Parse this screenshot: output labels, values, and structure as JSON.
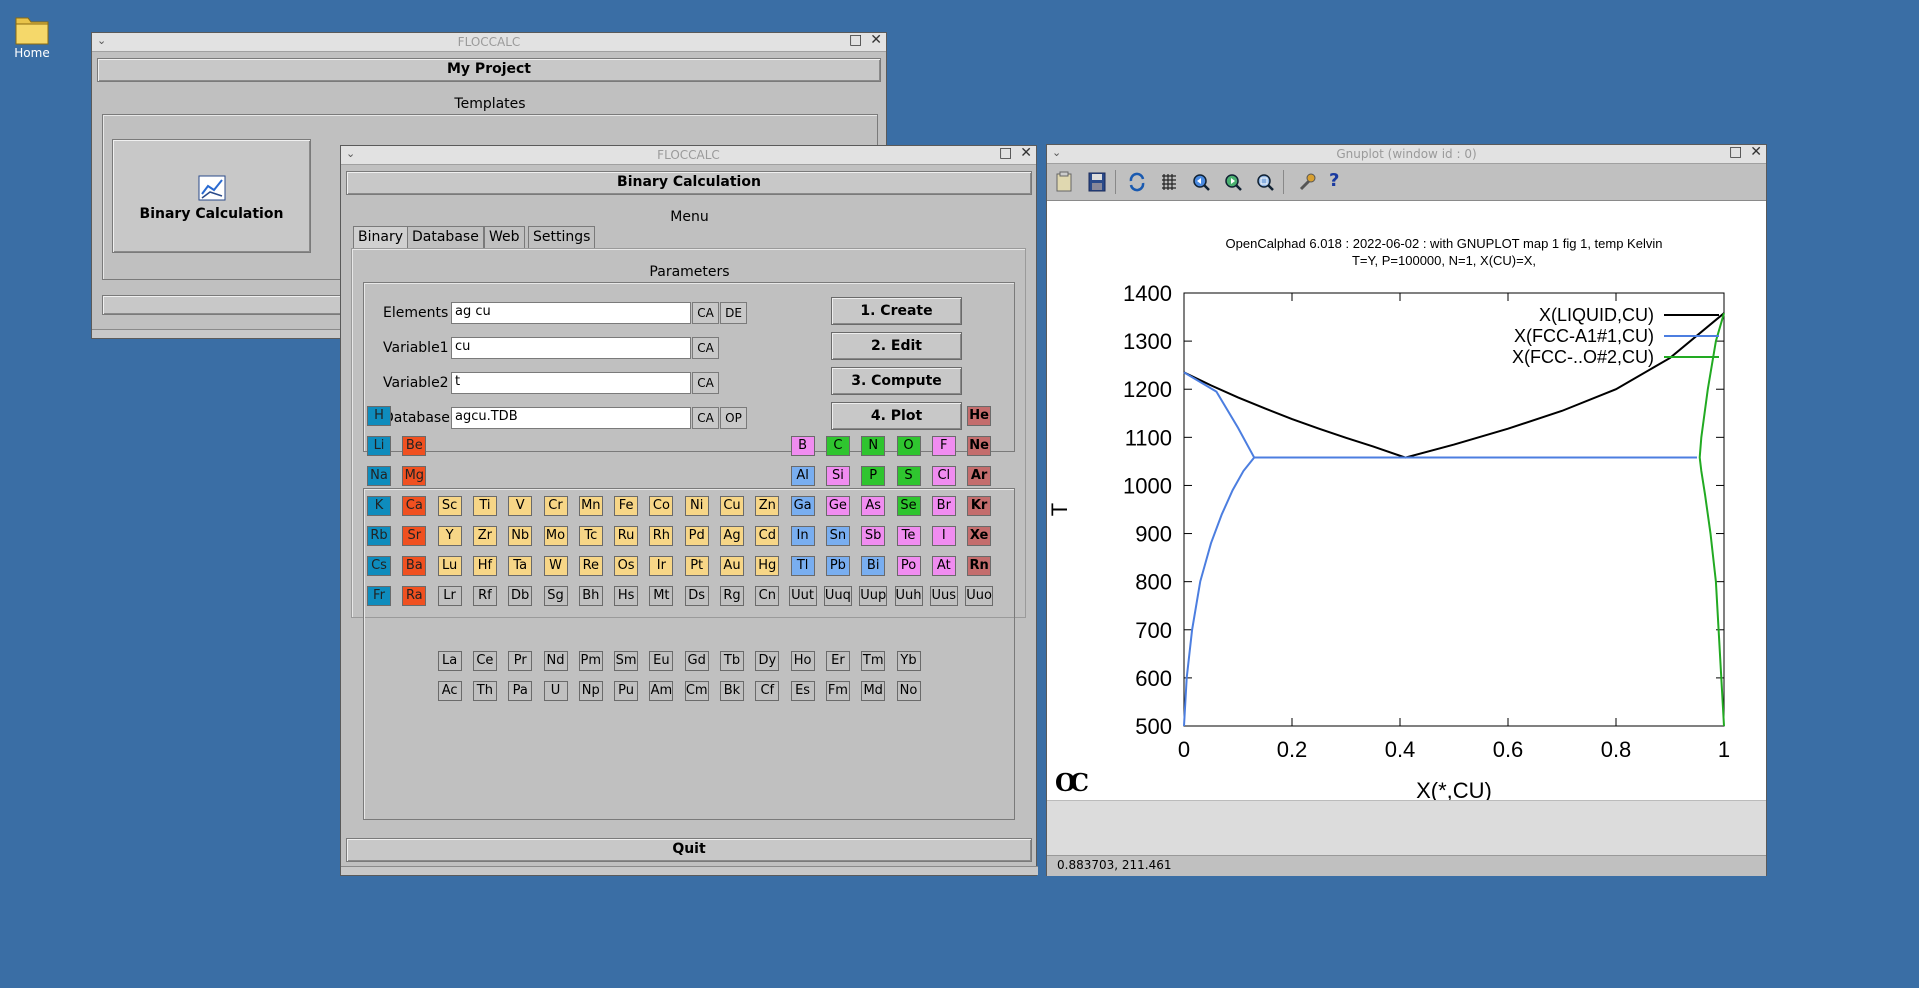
{
  "desktop": {
    "home_label": "Home"
  },
  "project_window": {
    "title": "FLOCCALC",
    "header": "My Project",
    "templates_label": "Templates",
    "template_button": "Binary Calculation"
  },
  "calc_window": {
    "title": "FLOCCALC",
    "header": "Binary Calculation",
    "menu_label": "Menu",
    "tabs": [
      "Binary",
      "Database",
      "Web",
      "Settings"
    ],
    "parameters_label": "Parameters",
    "fields": [
      {
        "label": "Elements",
        "value": "ag cu",
        "buttons": [
          "CA",
          "DE"
        ]
      },
      {
        "label": "Variable1",
        "value": "cu",
        "buttons": [
          "CA"
        ]
      },
      {
        "label": "Variable2",
        "value": "t",
        "buttons": [
          "CA"
        ]
      },
      {
        "label": "Database",
        "value": "agcu.TDB",
        "buttons": [
          "CA",
          "OP"
        ]
      }
    ],
    "actions": [
      "1. Create",
      "2. Edit",
      "3. Compute",
      "4. Plot"
    ],
    "quit_label": "Quit",
    "periodic_rows": [
      [
        "H",
        "",
        "",
        "",
        "",
        "",
        "",
        "",
        "",
        "",
        "",
        "",
        "",
        "",
        "",
        "",
        "",
        "He"
      ],
      [
        "Li",
        "Be",
        "",
        "",
        "",
        "",
        "",
        "",
        "",
        "",
        "",
        "",
        "B",
        "C",
        "N",
        "O",
        "F",
        "Ne"
      ],
      [
        "Na",
        "Mg",
        "",
        "",
        "",
        "",
        "",
        "",
        "",
        "",
        "",
        "",
        "Al",
        "Si",
        "P",
        "S",
        "Cl",
        "Ar"
      ],
      [
        "K",
        "Ca",
        "Sc",
        "Ti",
        "V",
        "Cr",
        "Mn",
        "Fe",
        "Co",
        "Ni",
        "Cu",
        "Zn",
        "Ga",
        "Ge",
        "As",
        "Se",
        "Br",
        "Kr"
      ],
      [
        "Rb",
        "Sr",
        "Y",
        "Zr",
        "Nb",
        "Mo",
        "Tc",
        "Ru",
        "Rh",
        "Pd",
        "Ag",
        "Cd",
        "In",
        "Sn",
        "Sb",
        "Te",
        "I",
        "Xe"
      ],
      [
        "Cs",
        "Ba",
        "Lu",
        "Hf",
        "Ta",
        "W",
        "Re",
        "Os",
        "Ir",
        "Pt",
        "Au",
        "Hg",
        "Tl",
        "Pb",
        "Bi",
        "Po",
        "At",
        "Rn"
      ],
      [
        "Fr",
        "Ra",
        "Lr",
        "Rf",
        "Db",
        "Sg",
        "Bh",
        "Hs",
        "Mt",
        "Ds",
        "Rg",
        "Cn",
        "Uut",
        "Uuq",
        "Uup",
        "Uuh",
        "Uus",
        "Uuo"
      ]
    ],
    "lanthanides": [
      "La",
      "Ce",
      "Pr",
      "Nd",
      "Pm",
      "Sm",
      "Eu",
      "Gd",
      "Tb",
      "Dy",
      "Ho",
      "Er",
      "Tm",
      "Yb"
    ],
    "actinides": [
      "Ac",
      "Th",
      "Pa",
      "U",
      "Np",
      "Pu",
      "Am",
      "Cm",
      "Bk",
      "Cf",
      "Es",
      "Fm",
      "Md",
      "No"
    ]
  },
  "gnuplot_window": {
    "title": "Gnuplot (window id : 0)",
    "status": "0.883703,  211.461",
    "logo": "OC",
    "toolbar_icons": [
      "copy-icon",
      "save-icon",
      "replot-icon",
      "grid-icon",
      "zoom-previous-icon",
      "zoom-next-icon",
      "autoscale-icon",
      "settings-icon",
      "help-icon"
    ]
  },
  "chart_data": {
    "type": "line",
    "title": "OpenCalphad   6.018 :  2022-06-02 : with GNUPLOT map 1 fig 1, temp Kelvin",
    "subtitle": "T=Y,  P=100000, N=1, X(CU)=X,",
    "xlabel": "X(*,CU)",
    "ylabel": "T",
    "xlim": [
      0,
      1
    ],
    "ylim": [
      500,
      1400
    ],
    "xticks": [
      "0",
      "0.2",
      "0.4",
      "0.6",
      "0.8",
      "1"
    ],
    "yticks": [
      "500",
      "600",
      "700",
      "800",
      "900",
      "1000",
      "1100",
      "1200",
      "1300",
      "1400"
    ],
    "legend_position": "top-right",
    "series": [
      {
        "name": "X(LIQUID,CU)",
        "color": "#000000",
        "x": [
          0,
          0.05,
          0.1,
          0.15,
          0.2,
          0.25,
          0.3,
          0.35,
          0.41,
          0.5,
          0.6,
          0.7,
          0.8,
          0.9,
          1.0
        ],
        "y": [
          1235,
          1208,
          1183,
          1160,
          1138,
          1118,
          1099,
          1081,
          1058,
          1085,
          1118,
          1155,
          1200,
          1265,
          1358
        ]
      },
      {
        "name": "X(FCC-A1#1,CU)",
        "color": "#4c7ee0",
        "x": [
          0,
          0.005,
          0.015,
          0.03,
          0.05,
          0.07,
          0.09,
          0.11,
          0.13,
          0.13,
          0.95,
          0.06,
          0.1,
          0.13
        ],
        "y": [
          500,
          600,
          700,
          800,
          880,
          940,
          990,
          1030,
          1058,
          1058,
          1058,
          1195,
          1120,
          1058
        ]
      },
      {
        "name": "X(FCC-..O#2,CU)",
        "color": "#22aa22",
        "x": [
          1.0,
          0.995,
          0.99,
          0.985,
          0.975,
          0.965,
          0.958,
          0.955,
          0.958,
          0.97,
          0.985,
          1.0
        ],
        "y": [
          500,
          600,
          700,
          800,
          900,
          980,
          1030,
          1058,
          1100,
          1200,
          1300,
          1358
        ]
      }
    ]
  }
}
